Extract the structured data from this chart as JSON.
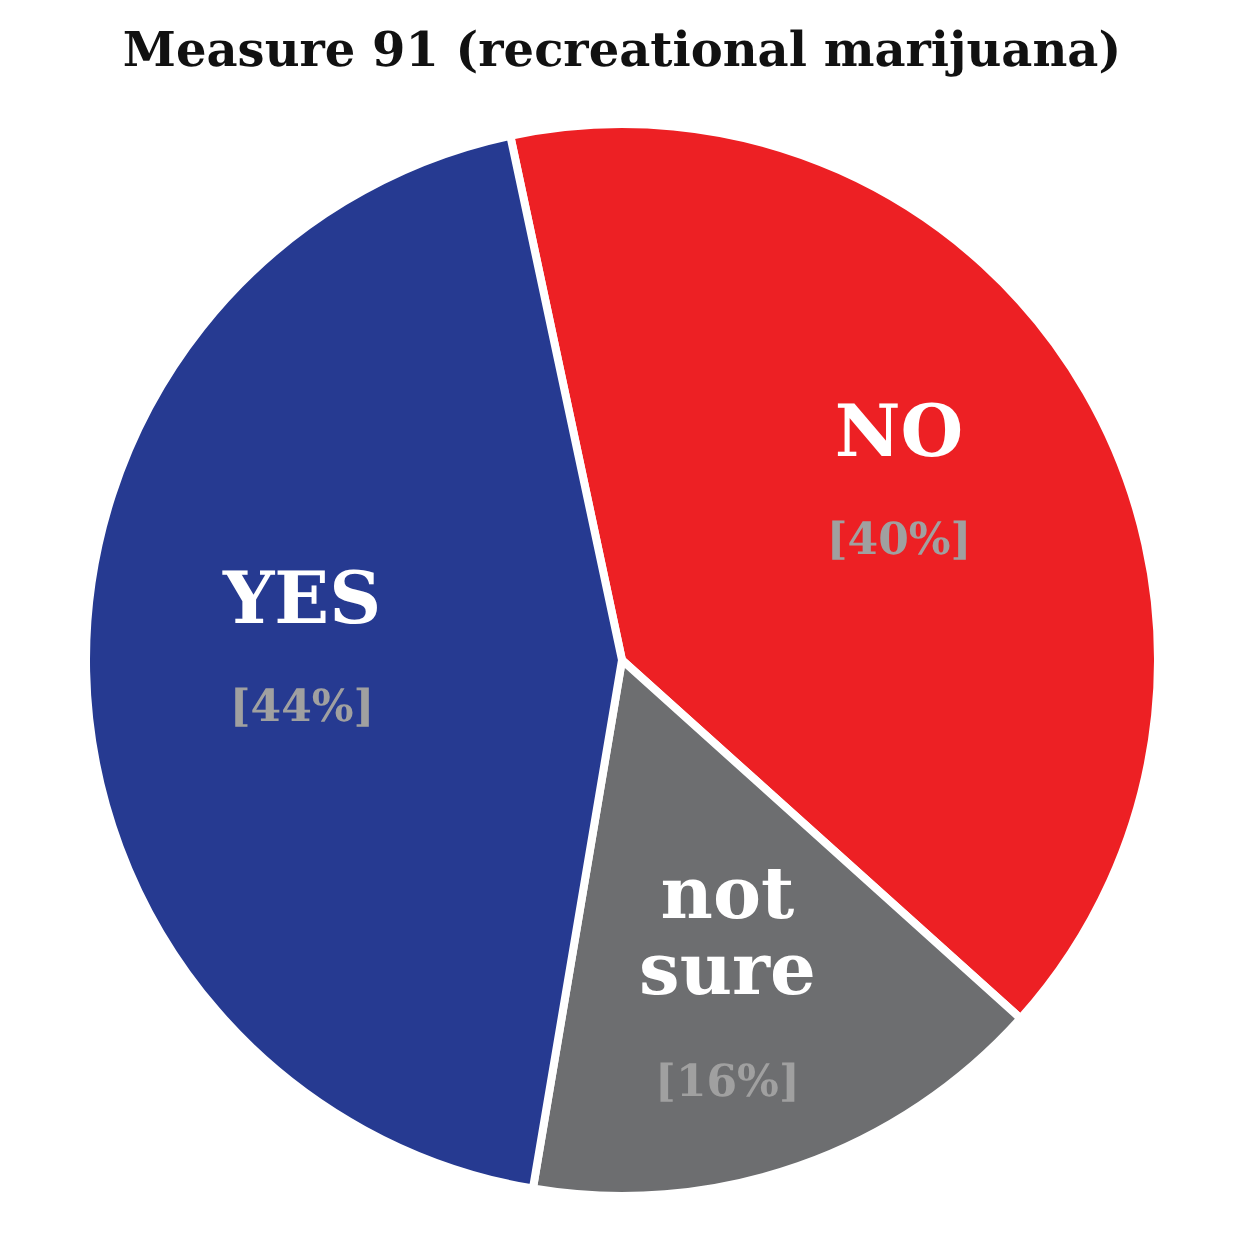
{
  "chart_data": {
    "type": "pie",
    "title": "Measure 91 (recreational marijuana)",
    "categories": [
      "NO",
      "not sure",
      "YES"
    ],
    "values": [
      40,
      16,
      44
    ],
    "colors": [
      "#ed2024",
      "#6d6e70",
      "#263a91"
    ],
    "value_labels": [
      "[40%]",
      "[16%]",
      "[44%]"
    ]
  }
}
